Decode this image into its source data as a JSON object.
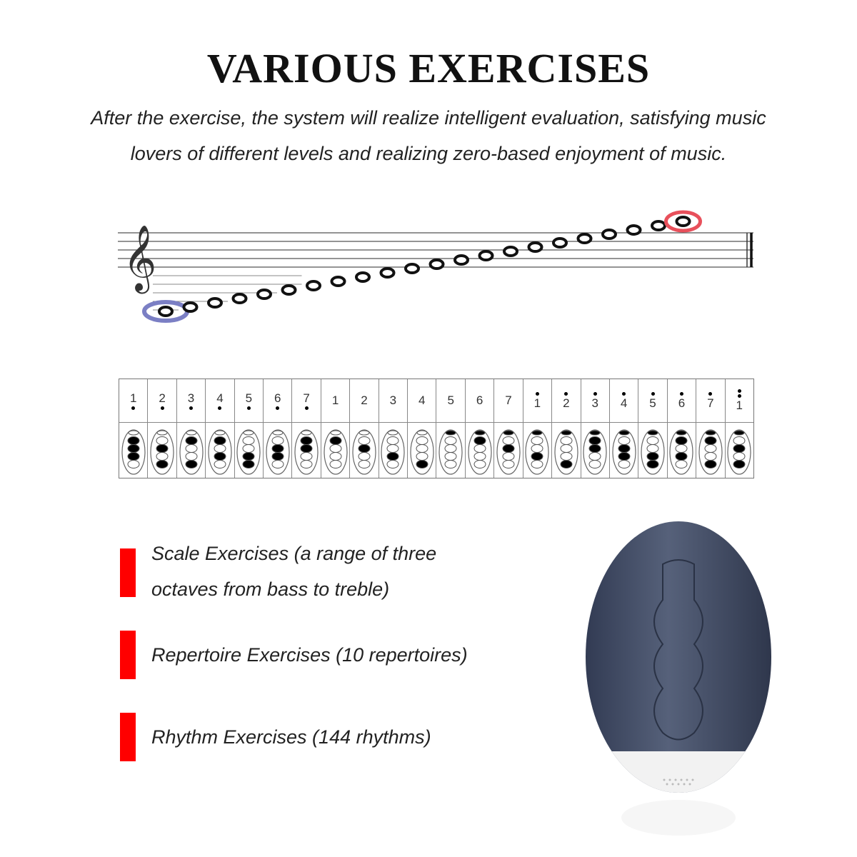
{
  "title": "VARIOUS EXERCISES",
  "subtitle_line1": "After the exercise, the system will realize intelligent evaluation, satisfying music",
  "subtitle_line2": "lovers of different levels and realizing zero-based enjoyment of music.",
  "staff": {
    "note_count": 22,
    "lowest_highlight_color": "#7b7fc4",
    "highest_highlight_color": "#e8505b"
  },
  "fingering_chart": [
    {
      "n": "1",
      "oct": -1,
      "thumb": 0,
      "holes": "1110"
    },
    {
      "n": "2",
      "oct": -1,
      "thumb": 0,
      "holes": "0101"
    },
    {
      "n": "3",
      "oct": -1,
      "thumb": 0,
      "holes": "1001"
    },
    {
      "n": "4",
      "oct": -1,
      "thumb": 0,
      "holes": "1010"
    },
    {
      "n": "5",
      "oct": -1,
      "thumb": 0,
      "holes": "0011"
    },
    {
      "n": "6",
      "oct": -1,
      "thumb": 0,
      "holes": "0110"
    },
    {
      "n": "7",
      "oct": -1,
      "thumb": 0,
      "holes": "1100"
    },
    {
      "n": "1",
      "oct": 0,
      "thumb": 0,
      "holes": "1000"
    },
    {
      "n": "2",
      "oct": 0,
      "thumb": 0,
      "holes": "0100"
    },
    {
      "n": "3",
      "oct": 0,
      "thumb": 0,
      "holes": "0010"
    },
    {
      "n": "4",
      "oct": 0,
      "thumb": 0,
      "holes": "0001"
    },
    {
      "n": "5",
      "oct": 0,
      "thumb": 1,
      "holes": "0000"
    },
    {
      "n": "6",
      "oct": 0,
      "thumb": 1,
      "holes": "1000"
    },
    {
      "n": "7",
      "oct": 0,
      "thumb": 1,
      "holes": "0100"
    },
    {
      "n": "1",
      "oct": 1,
      "thumb": 1,
      "holes": "0010"
    },
    {
      "n": "2",
      "oct": 1,
      "thumb": 1,
      "holes": "0001"
    },
    {
      "n": "3",
      "oct": 1,
      "thumb": 1,
      "holes": "1100"
    },
    {
      "n": "4",
      "oct": 1,
      "thumb": 1,
      "holes": "0110"
    },
    {
      "n": "5",
      "oct": 1,
      "thumb": 1,
      "holes": "0011"
    },
    {
      "n": "6",
      "oct": 1,
      "thumb": 1,
      "holes": "1010"
    },
    {
      "n": "7",
      "oct": 1,
      "thumb": 1,
      "holes": "1001"
    },
    {
      "n": "1",
      "oct": 2,
      "thumb": 1,
      "holes": "0101"
    }
  ],
  "features": [
    {
      "line1": "Scale Exercises (a range of three",
      "line2": "octaves from bass to treble)"
    },
    {
      "line1": "Repertoire Exercises (10 repertoires)"
    },
    {
      "line1": "Rhythm Exercises (144 rhythms)"
    }
  ],
  "colors": {
    "accent": "#ff0000",
    "device_body": "#3f4a62",
    "device_base": "#f2f2f2"
  }
}
